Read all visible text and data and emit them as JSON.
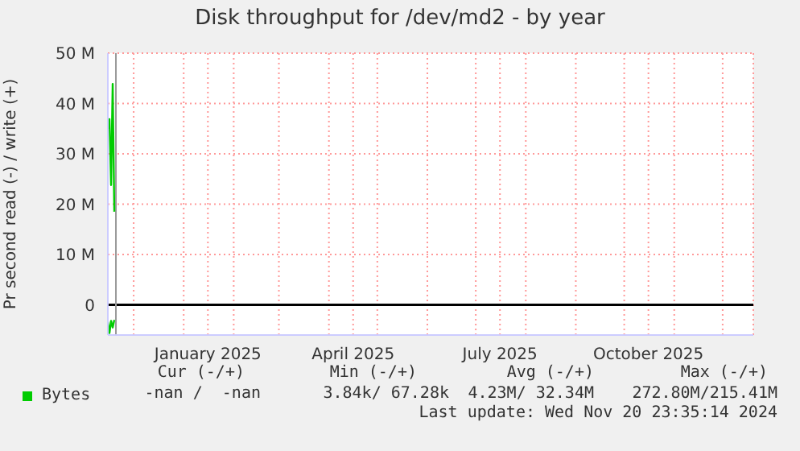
{
  "chart_data": {
    "type": "line",
    "title": "Disk throughput for /dev/md2 - by year",
    "ylabel": "Pr second read (-) / write (+)",
    "series": [
      {
        "name": "Bytes",
        "color": "#00cc00",
        "x": [
          "2024-11-15",
          "2024-11-16",
          "2024-11-17",
          "2024-11-18",
          "2024-11-19"
        ],
        "values": [
          35,
          36.9,
          23.8,
          43.9,
          18.5
        ]
      },
      {
        "color": "#00cc00",
        "x": [
          "2024-11-15",
          "2024-11-16",
          "2024-11-17",
          "2024-11-18",
          "2024-11-19"
        ],
        "values": [
          -3.4,
          -5.6,
          -3.2,
          -4.5,
          -3.0
        ]
      }
    ],
    "xlim": [
      "2024-11-15",
      "2025-12-20"
    ],
    "xticks": [
      {
        "value": "2024-12-01",
        "label": null
      },
      {
        "value": "2025-01-01",
        "label": null
      },
      {
        "value": "2025-01-16",
        "label": "January 2025"
      },
      {
        "value": "2025-02-01",
        "label": null
      },
      {
        "value": "2025-03-01",
        "label": null
      },
      {
        "value": "2025-04-01",
        "label": null
      },
      {
        "value": "2025-04-16",
        "label": "April 2025"
      },
      {
        "value": "2025-05-01",
        "label": null
      },
      {
        "value": "2025-06-01",
        "label": null
      },
      {
        "value": "2025-07-01",
        "label": null
      },
      {
        "value": "2025-07-16",
        "label": "July 2025"
      },
      {
        "value": "2025-08-01",
        "label": null
      },
      {
        "value": "2025-09-01",
        "label": null
      },
      {
        "value": "2025-10-01",
        "label": null
      },
      {
        "value": "2025-10-16",
        "label": "October 2025"
      },
      {
        "value": "2025-11-01",
        "label": null
      },
      {
        "value": "2025-12-01",
        "label": null
      }
    ],
    "ylim": [
      -6,
      50
    ],
    "yticks": [
      {
        "value": 0,
        "label": "0"
      },
      {
        "value": 10,
        "label": "10 M"
      },
      {
        "value": 20,
        "label": "20 M"
      },
      {
        "value": 30,
        "label": "30 M"
      },
      {
        "value": 40,
        "label": "40 M"
      },
      {
        "value": 50,
        "label": "50 M"
      }
    ],
    "grid": true,
    "legend": "bottom left",
    "marker": "none",
    "line_style": "solid",
    "ref_lines": [
      {
        "axis": "y",
        "value": 0,
        "color": "#000000"
      },
      {
        "axis": "x",
        "value": "2024-11-20",
        "color": "#999999"
      }
    ],
    "annotations": [
      "Cur (-/+)",
      "Min (-/+)",
      "Avg (-/+)",
      "Max (-/+)",
      "-nan /  -nan",
      "3.84k/ 67.28k",
      "4.23M/ 32.34M",
      "272.80M/215.41M",
      "Last update: Wed Nov 20 23:35:14 2024"
    ]
  }
}
